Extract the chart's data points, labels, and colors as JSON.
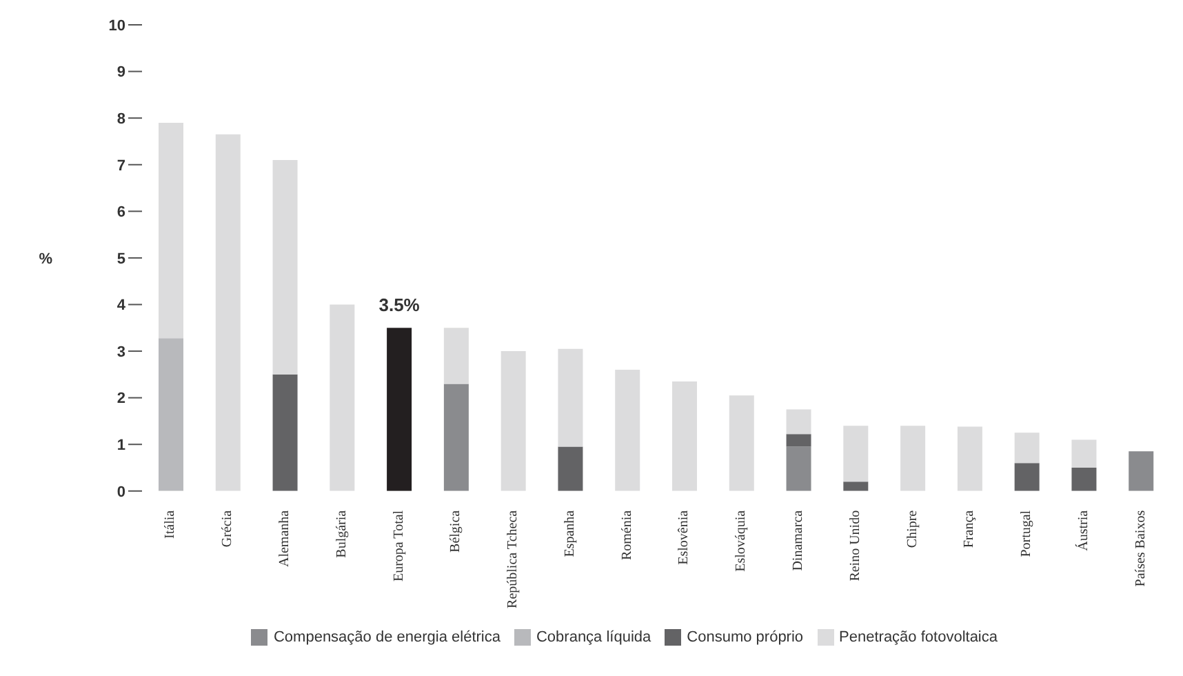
{
  "chart_data": {
    "type": "bar",
    "stacked": true,
    "ylabel": "%",
    "ylim": [
      0,
      10
    ],
    "yticks": [
      0,
      1,
      2,
      3,
      4,
      5,
      6,
      7,
      8,
      9,
      10
    ],
    "legend": "bottom",
    "categories": [
      "Itália",
      "Grécia",
      "Alemanha",
      "Bulgária",
      "Europa Total",
      "Bélgica",
      "República Tcheca",
      "Espanha",
      "Roménia",
      "Eslovênia",
      "Eslováquia",
      "Dinamarca",
      "Reino Unido",
      "Chipre",
      "França",
      "Portugal",
      "Áustria",
      "Países Baixos"
    ],
    "series": [
      {
        "name": "Compensação de energia elétrica",
        "color": "#8a8b8e",
        "values": [
          null,
          null,
          null,
          null,
          null,
          2.3,
          null,
          null,
          null,
          null,
          null,
          0.95,
          null,
          null,
          null,
          null,
          null,
          0.85
        ]
      },
      {
        "name": "Cobrança líquida",
        "color": "#b8b9bc",
        "values": [
          3.28,
          null,
          null,
          null,
          null,
          null,
          null,
          null,
          null,
          null,
          null,
          null,
          null,
          null,
          null,
          null,
          null,
          null
        ]
      },
      {
        "name": "Consumo próprio",
        "color": "#636365",
        "values": [
          null,
          null,
          2.5,
          null,
          null,
          null,
          null,
          0.95,
          null,
          null,
          null,
          0.27,
          0.2,
          null,
          null,
          0.6,
          0.5,
          null
        ]
      },
      {
        "color": "#231f20",
        "values": [
          null,
          null,
          null,
          null,
          3.5,
          null,
          null,
          null,
          null,
          null,
          null,
          null,
          null,
          null,
          null,
          null,
          null,
          null
        ],
        "value_labels": [
          null,
          null,
          null,
          null,
          "3.5%",
          null,
          null,
          null,
          null,
          null,
          null,
          null,
          null,
          null,
          null,
          null,
          null,
          null
        ]
      },
      {
        "name": "Penetração fotovoltaica",
        "color": "#dcdcdd",
        "values": [
          4.62,
          7.65,
          4.6,
          4.0,
          null,
          1.2,
          3.0,
          2.1,
          2.6,
          2.35,
          2.05,
          0.53,
          1.2,
          1.4,
          1.38,
          0.65,
          0.6,
          null
        ]
      }
    ]
  }
}
